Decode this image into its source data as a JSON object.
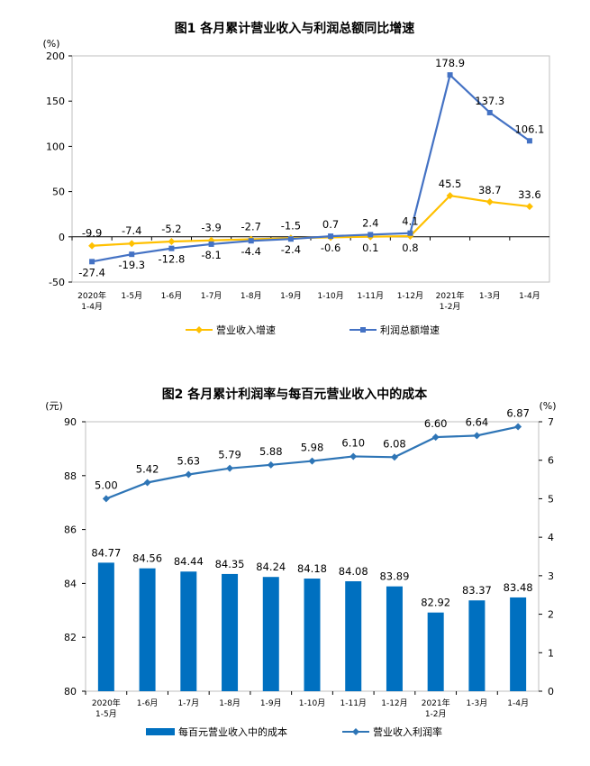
{
  "chart_data": [
    {
      "type": "line",
      "title": "图1  各月累计营业收入与利润总额同比增速",
      "ylabel": "(%)",
      "ylim": [
        -50,
        200
      ],
      "yticks": [
        "-50",
        "0",
        "50",
        "100",
        "150",
        "200"
      ],
      "categories": [
        [
          "2020年",
          "1-4月"
        ],
        [
          "1-5月"
        ],
        [
          "1-6月"
        ],
        [
          "1-7月"
        ],
        [
          "1-8月"
        ],
        [
          "1-9月"
        ],
        [
          "1-10月"
        ],
        [
          "1-11月"
        ],
        [
          "1-12月"
        ],
        [
          "2021年",
          "1-2月"
        ],
        [
          "1-3月"
        ],
        [
          "1-4月"
        ]
      ],
      "series": [
        {
          "name": "营业收入增速",
          "color": "#ffc000",
          "marker": "diamond",
          "values": [
            -9.9,
            -7.4,
            -5.2,
            -3.9,
            -2.7,
            -1.5,
            -0.6,
            0.1,
            0.8,
            45.5,
            38.7,
            33.6
          ],
          "labels": [
            "-9.9",
            "-7.4",
            "-5.2",
            "-3.9",
            "-2.7",
            "-1.5",
            "-0.6",
            "0.1",
            "0.8",
            "45.5",
            "38.7",
            "33.6"
          ]
        },
        {
          "name": "利润总额增速",
          "color": "#4472c4",
          "marker": "square",
          "values": [
            -27.4,
            -19.3,
            -12.8,
            -8.1,
            -4.4,
            -2.4,
            0.7,
            2.4,
            4.1,
            178.9,
            137.3,
            106.1
          ],
          "labels": [
            "-27.4",
            "-19.3",
            "-12.8",
            "-8.1",
            "-4.4",
            "-2.4",
            "0.7",
            "2.4",
            "4.1",
            "178.9",
            "137.3",
            "106.1"
          ]
        }
      ],
      "legend": [
        "营业收入增速",
        "利润总额增速"
      ]
    },
    {
      "type": "bar+line",
      "title": "图2  各月累计利润率与每百元营业收入中的成本",
      "ylabel_left": "(元)",
      "ylabel_right": "(%)",
      "ylim_left": [
        80,
        90
      ],
      "ylim_right": [
        0,
        7
      ],
      "yticks_left": [
        "80",
        "82",
        "84",
        "86",
        "88",
        "90"
      ],
      "yticks_right": [
        "0",
        "1",
        "2",
        "3",
        "4",
        "5",
        "6",
        "7"
      ],
      "categories": [
        [
          "2020年",
          "1-5月"
        ],
        [
          "1-6月"
        ],
        [
          "1-7月"
        ],
        [
          "1-8月"
        ],
        [
          "1-9月"
        ],
        [
          "1-10月"
        ],
        [
          "1-11月"
        ],
        [
          "1-12月"
        ],
        [
          "2021年",
          "1-2月"
        ],
        [
          "1-3月"
        ],
        [
          "1-4月"
        ]
      ],
      "bars": {
        "name": "每百元营业收入中的成本",
        "color": "#0070c0",
        "values": [
          84.77,
          84.56,
          84.44,
          84.35,
          84.24,
          84.18,
          84.08,
          83.89,
          82.92,
          83.37,
          83.48
        ],
        "labels": [
          "84.77",
          "84.56",
          "84.44",
          "84.35",
          "84.24",
          "84.18",
          "84.08",
          "83.89",
          "82.92",
          "83.37",
          "83.48"
        ]
      },
      "line": {
        "name": "营业收入利润率",
        "color": "#2e75b6",
        "values": [
          5.0,
          5.42,
          5.63,
          5.79,
          5.88,
          5.98,
          6.1,
          6.08,
          6.6,
          6.64,
          6.87
        ],
        "labels": [
          "5.00",
          "5.42",
          "5.63",
          "5.79",
          "5.88",
          "5.98",
          "6.10",
          "6.08",
          "6.60",
          "6.64",
          "6.87"
        ]
      },
      "legend": [
        "每百元营业收入中的成本",
        "营业收入利润率"
      ]
    }
  ]
}
